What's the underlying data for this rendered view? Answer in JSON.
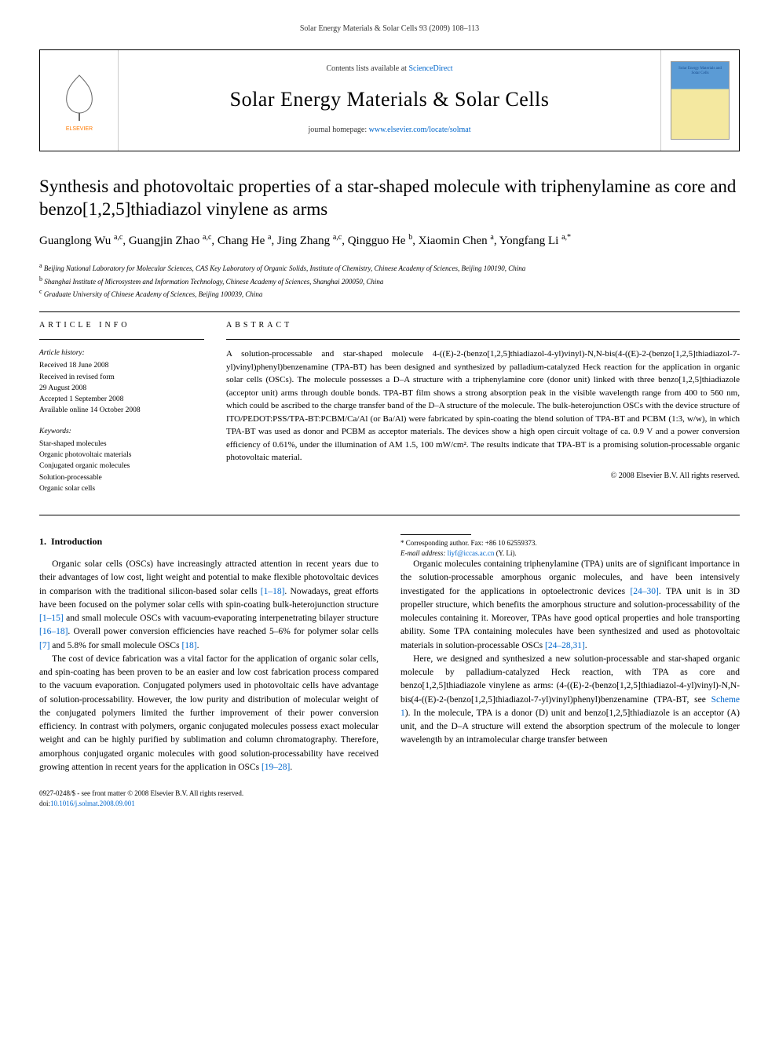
{
  "running_header": "Solar Energy Materials & Solar Cells 93 (2009) 108–113",
  "masthead": {
    "contents_prefix": "Contents lists available at ",
    "contents_link": "ScienceDirect",
    "journal_name": "Solar Energy Materials & Solar Cells",
    "homepage_prefix": "journal homepage: ",
    "homepage_link": "www.elsevier.com/locate/solmat",
    "publisher_logo_label": "ELSEVIER",
    "cover_title": "Solar Energy Materials and Solar Cells"
  },
  "article": {
    "title": "Synthesis and photovoltaic properties of a star-shaped molecule with triphenylamine as core and benzo[1,2,5]thiadiazol vinylene as arms",
    "authors_html": "Guanglong Wu <sup>a,c</sup>, Guangjin Zhao <sup>a,c</sup>, Chang He <sup>a</sup>, Jing Zhang <sup>a,c</sup>, Qingguo He <sup>b</sup>, Xiaomin Chen <sup>a</sup>, Yongfang Li <sup>a,*</sup>",
    "affiliations": [
      {
        "sup": "a",
        "text": "Beijing National Laboratory for Molecular Sciences, CAS Key Laboratory of Organic Solids, Institute of Chemistry, Chinese Academy of Sciences, Beijing 100190, China"
      },
      {
        "sup": "b",
        "text": "Shanghai Institute of Microsystem and Information Technology, Chinese Academy of Sciences, Shanghai 200050, China"
      },
      {
        "sup": "c",
        "text": "Graduate University of Chinese Academy of Sciences, Beijing 100039, China"
      }
    ]
  },
  "article_info": {
    "heading": "ARTICLE INFO",
    "history_label": "Article history:",
    "history": [
      "Received 18 June 2008",
      "Received in revised form",
      "29 August 2008",
      "Accepted 1 September 2008",
      "Available online 14 October 2008"
    ],
    "keywords_label": "Keywords:",
    "keywords": [
      "Star-shaped molecules",
      "Organic photovoltaic materials",
      "Conjugated organic molecules",
      "Solution-processable",
      "Organic solar cells"
    ]
  },
  "abstract": {
    "heading": "ABSTRACT",
    "text": "A solution-processable and star-shaped molecule 4-((E)-2-(benzo[1,2,5]thiadiazol-4-yl)vinyl)-N,N-bis(4-((E)-2-(benzo[1,2,5]thiadiazol-7-yl)vinyl)phenyl)benzenamine (TPA-BT) has been designed and synthesized by palladium-catalyzed Heck reaction for the application in organic solar cells (OSCs). The molecule possesses a D–A structure with a triphenylamine core (donor unit) linked with three benzo[1,2,5]thiadiazole (acceptor unit) arms through double bonds. TPA-BT film shows a strong absorption peak in the visible wavelength range from 400 to 560 nm, which could be ascribed to the charge transfer band of the D–A structure of the molecule. The bulk-heterojunction OSCs with the device structure of ITO/PEDOT:PSS/TPA-BT:PCBM/Ca/Al (or Ba/Al) were fabricated by spin-coating the blend solution of TPA-BT and PCBM (1:3, w/w), in which TPA-BT was used as donor and PCBM as acceptor materials. The devices show a high open circuit voltage of ca. 0.9 V and a power conversion efficiency of 0.61%, under the illumination of AM 1.5, 100 mW/cm². The results indicate that TPA-BT is a promising solution-processable organic photovoltaic material.",
    "copyright": "© 2008 Elsevier B.V. All rights reserved."
  },
  "body": {
    "section_number": "1.",
    "section_title": "Introduction",
    "p1_a": "Organic solar cells (OSCs) have increasingly attracted attention in recent years due to their advantages of low cost, light weight and potential to make flexible photovoltaic devices in comparison with the traditional silicon-based solar cells ",
    "p1_ref1": "[1–18]",
    "p1_b": ". Nowadays, great efforts have been focused on the polymer solar cells with spin-coating bulk-heterojunction structure ",
    "p1_ref2": "[1–15]",
    "p1_c": " and small molecule OSCs with vacuum-evaporating interpenetrating bilayer structure ",
    "p1_ref3": "[16–18]",
    "p1_d": ". Overall power conversion efficiencies have reached 5–6% for polymer solar cells ",
    "p1_ref4": "[7]",
    "p1_e": " and 5.8% for small molecule OSCs ",
    "p1_ref5": "[18]",
    "p1_f": ".",
    "p2_a": "The cost of device fabrication was a vital factor for the application of organic solar cells, and spin-coating has been proven to be an easier and low cost fabrication process compared to the vacuum evaporation. Conjugated polymers used in photovoltaic cells have advantage of solution-processability. However, the low purity and distribution of molecular weight of the conjugated polymers limited the further improvement of their power conversion efficiency. In contrast with polymers, organic conjugated molecules possess exact molecular weight and can be highly purified by sublimation and column chromatography. Therefore, amorphous conjugated organic molecules with good solution-processability have received growing attention in recent years for the application in OSCs ",
    "p2_ref1": "[19–28]",
    "p2_b": ".",
    "p3_a": "Organic molecules containing triphenylamine (TPA) units are of significant importance in the solution-processable amorphous organic molecules, and have been intensively investigated for the applications in optoelectronic devices ",
    "p3_ref1": "[24–30]",
    "p3_b": ". TPA unit is in 3D propeller structure, which benefits the amorphous structure and solution-processability of the molecules containing it. Moreover, TPAs have good optical properties and hole transporting ability. Some TPA containing molecules have been synthesized and used as photovoltaic materials in solution-processable OSCs ",
    "p3_ref2": "[24–28,31]",
    "p3_c": ".",
    "p4_a": "Here, we designed and synthesized a new solution-processable and star-shaped organic molecule by palladium-catalyzed Heck reaction, with TPA as core and benzo[1,2,5]thiadiazole vinylene as arms: (4-((E)-2-(benzo[1,2,5]thiadiazol-4-yl)vinyl)-N,N-bis(4-((E)-2-(benzo[1,2,5]thiadiazol-7-yl)vinyl)phenyl)benzenamine (TPA-BT, see ",
    "p4_ref1": "Scheme 1",
    "p4_b": "). In the molecule, TPA is a donor (D) unit and benzo[1,2,5]thiadiazole is an acceptor (A) unit, and the D–A structure will extend the absorption spectrum of the molecule to longer wavelength by an intramolecular charge transfer between"
  },
  "footnote": {
    "corr_label": "* Corresponding author. Fax: +86 10 62559373.",
    "email_label": "E-mail address: ",
    "email": "liyf@iccas.ac.cn",
    "email_suffix": " (Y. Li)."
  },
  "footer": {
    "front_matter": "0927-0248/$ - see front matter © 2008 Elsevier B.V. All rights reserved.",
    "doi_prefix": "doi:",
    "doi": "10.1016/j.solmat.2008.09.001"
  },
  "colors": {
    "link": "#0066cc",
    "text": "#000000",
    "cover_top": "#5b9bd5",
    "cover_bottom": "#f4e8a0",
    "publisher_orange": "#ff7a00"
  }
}
